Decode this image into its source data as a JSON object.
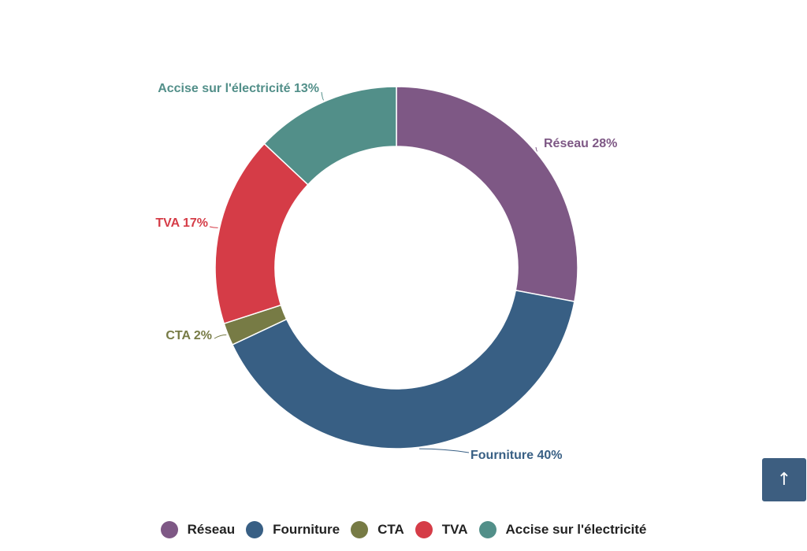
{
  "chart_data": {
    "type": "pie",
    "variant": "donut",
    "slices": [
      {
        "label": "Réseau",
        "value": 28,
        "display": "Réseau 28%",
        "color": "#7e5885"
      },
      {
        "label": "Fourniture",
        "value": 40,
        "display": "Fourniture 40%",
        "color": "#385f84"
      },
      {
        "label": "CTA",
        "value": 2,
        "display": "CTA 2%",
        "color": "#777b45"
      },
      {
        "label": "TVA",
        "value": 17,
        "display": "TVA 17%",
        "color": "#d53c47"
      },
      {
        "label": "Accise sur l'électricité",
        "value": 13,
        "display": "Accise sur l'électricité 13%",
        "color": "#528f89"
      }
    ],
    "unit": "%",
    "legend_position": "bottom-center"
  },
  "scroll_top": {
    "icon": "arrow-up-icon",
    "glyph": "↑",
    "color": "#3d5e80"
  }
}
